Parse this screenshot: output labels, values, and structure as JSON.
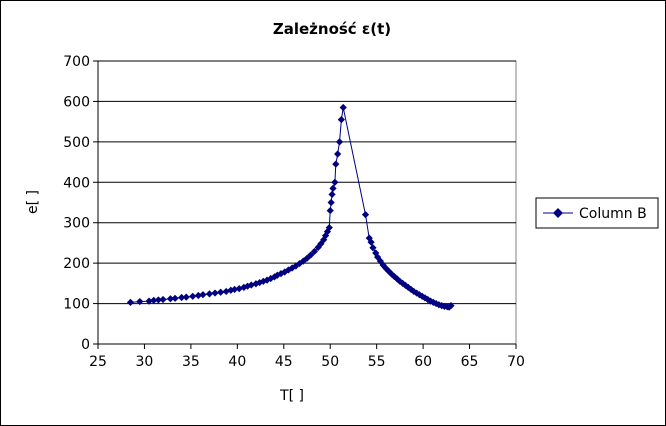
{
  "chart_data": {
    "type": "scatter",
    "title": "Zależność ε(t)",
    "xlabel": "T[ ]",
    "ylabel": "e[ ]",
    "xlim": [
      25,
      70
    ],
    "ylim": [
      0,
      700
    ],
    "x_ticks": [
      "25",
      "30",
      "35",
      "40",
      "45",
      "50",
      "55",
      "60",
      "65",
      "70"
    ],
    "y_ticks": [
      "0",
      "100",
      "200",
      "300",
      "400",
      "500",
      "600",
      "700"
    ],
    "grid": "horizontal",
    "legend_position": "right",
    "colors": {
      "series": "#000080",
      "grid": "#000000",
      "plot_background": "#ffffff"
    },
    "series": [
      {
        "name": "Column B",
        "marker": "diamond",
        "points": [
          [
            28.5,
            103
          ],
          [
            29.5,
            105
          ],
          [
            30.5,
            106
          ],
          [
            31.0,
            108
          ],
          [
            31.5,
            109
          ],
          [
            32.0,
            110
          ],
          [
            32.8,
            112
          ],
          [
            33.3,
            113
          ],
          [
            34.0,
            115
          ],
          [
            34.5,
            116
          ],
          [
            35.2,
            118
          ],
          [
            35.8,
            120
          ],
          [
            36.3,
            122
          ],
          [
            37.0,
            124
          ],
          [
            37.6,
            126
          ],
          [
            38.2,
            128
          ],
          [
            38.8,
            130
          ],
          [
            39.3,
            133
          ],
          [
            39.7,
            135
          ],
          [
            40.2,
            137
          ],
          [
            40.7,
            140
          ],
          [
            41.1,
            143
          ],
          [
            41.5,
            146
          ],
          [
            42.0,
            149
          ],
          [
            42.4,
            152
          ],
          [
            42.8,
            155
          ],
          [
            43.2,
            158
          ],
          [
            43.6,
            162
          ],
          [
            44.0,
            166
          ],
          [
            44.3,
            170
          ],
          [
            44.7,
            174
          ],
          [
            45.1,
            178
          ],
          [
            45.5,
            183
          ],
          [
            45.9,
            188
          ],
          [
            46.3,
            193
          ],
          [
            46.7,
            199
          ],
          [
            47.1,
            205
          ],
          [
            47.5,
            212
          ],
          [
            47.9,
            220
          ],
          [
            48.3,
            229
          ],
          [
            48.7,
            239
          ],
          [
            49.0,
            248
          ],
          [
            49.3,
            258
          ],
          [
            49.5,
            268
          ],
          [
            49.7,
            278
          ],
          [
            49.9,
            288
          ],
          [
            50.0,
            330
          ],
          [
            50.1,
            350
          ],
          [
            50.2,
            370
          ],
          [
            50.3,
            385
          ],
          [
            50.5,
            400
          ],
          [
            50.6,
            445
          ],
          [
            50.8,
            470
          ],
          [
            51.0,
            500
          ],
          [
            51.2,
            555
          ],
          [
            51.4,
            585
          ],
          [
            53.8,
            320
          ],
          [
            54.2,
            262
          ],
          [
            54.4,
            252
          ],
          [
            54.6,
            238
          ],
          [
            54.9,
            225
          ],
          [
            55.1,
            215
          ],
          [
            55.4,
            205
          ],
          [
            55.7,
            195
          ],
          [
            56.0,
            187
          ],
          [
            56.3,
            180
          ],
          [
            56.6,
            173
          ],
          [
            56.9,
            167
          ],
          [
            57.2,
            161
          ],
          [
            57.5,
            155
          ],
          [
            57.8,
            150
          ],
          [
            58.1,
            145
          ],
          [
            58.4,
            140
          ],
          [
            58.7,
            135
          ],
          [
            59.0,
            130
          ],
          [
            59.3,
            126
          ],
          [
            59.6,
            122
          ],
          [
            59.9,
            118
          ],
          [
            60.2,
            114
          ],
          [
            60.5,
            110
          ],
          [
            60.8,
            106
          ],
          [
            61.1,
            103
          ],
          [
            61.4,
            100
          ],
          [
            61.7,
            97
          ],
          [
            62.0,
            95
          ],
          [
            62.3,
            93
          ],
          [
            62.6,
            92
          ],
          [
            62.8,
            91
          ],
          [
            63.0,
            95
          ]
        ]
      }
    ]
  }
}
